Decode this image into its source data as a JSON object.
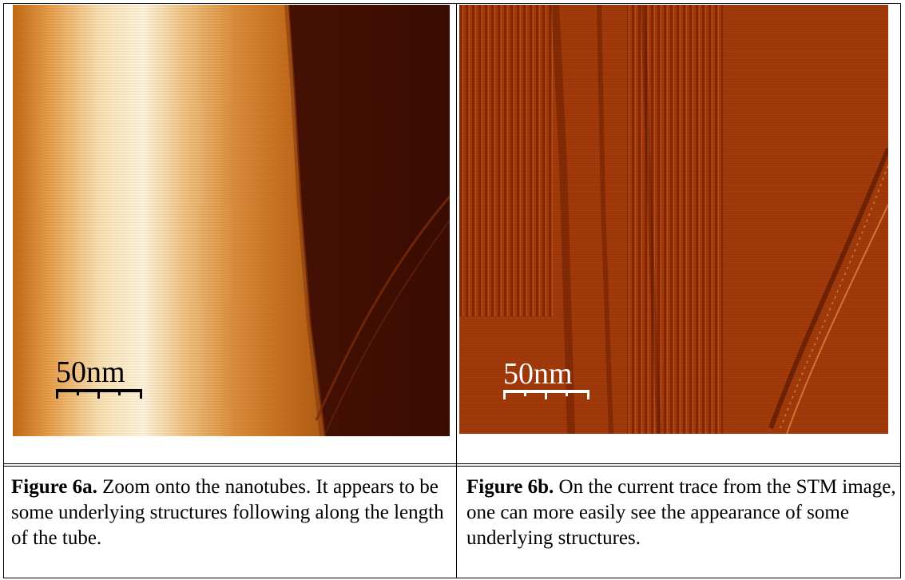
{
  "figures": [
    {
      "id": "6a",
      "scale_label": "50nm",
      "caption_bold": "Figure 6a.",
      "caption_text": " Zoom onto the nanotubes. It appears to be some underlying structures following along the length of the tube."
    },
    {
      "id": "6b",
      "scale_label": "50nm",
      "caption_bold": "Figure 6b.",
      "caption_text": " On the current trace from the STM image, one can more easily see the appearance of some underlying structures."
    }
  ]
}
